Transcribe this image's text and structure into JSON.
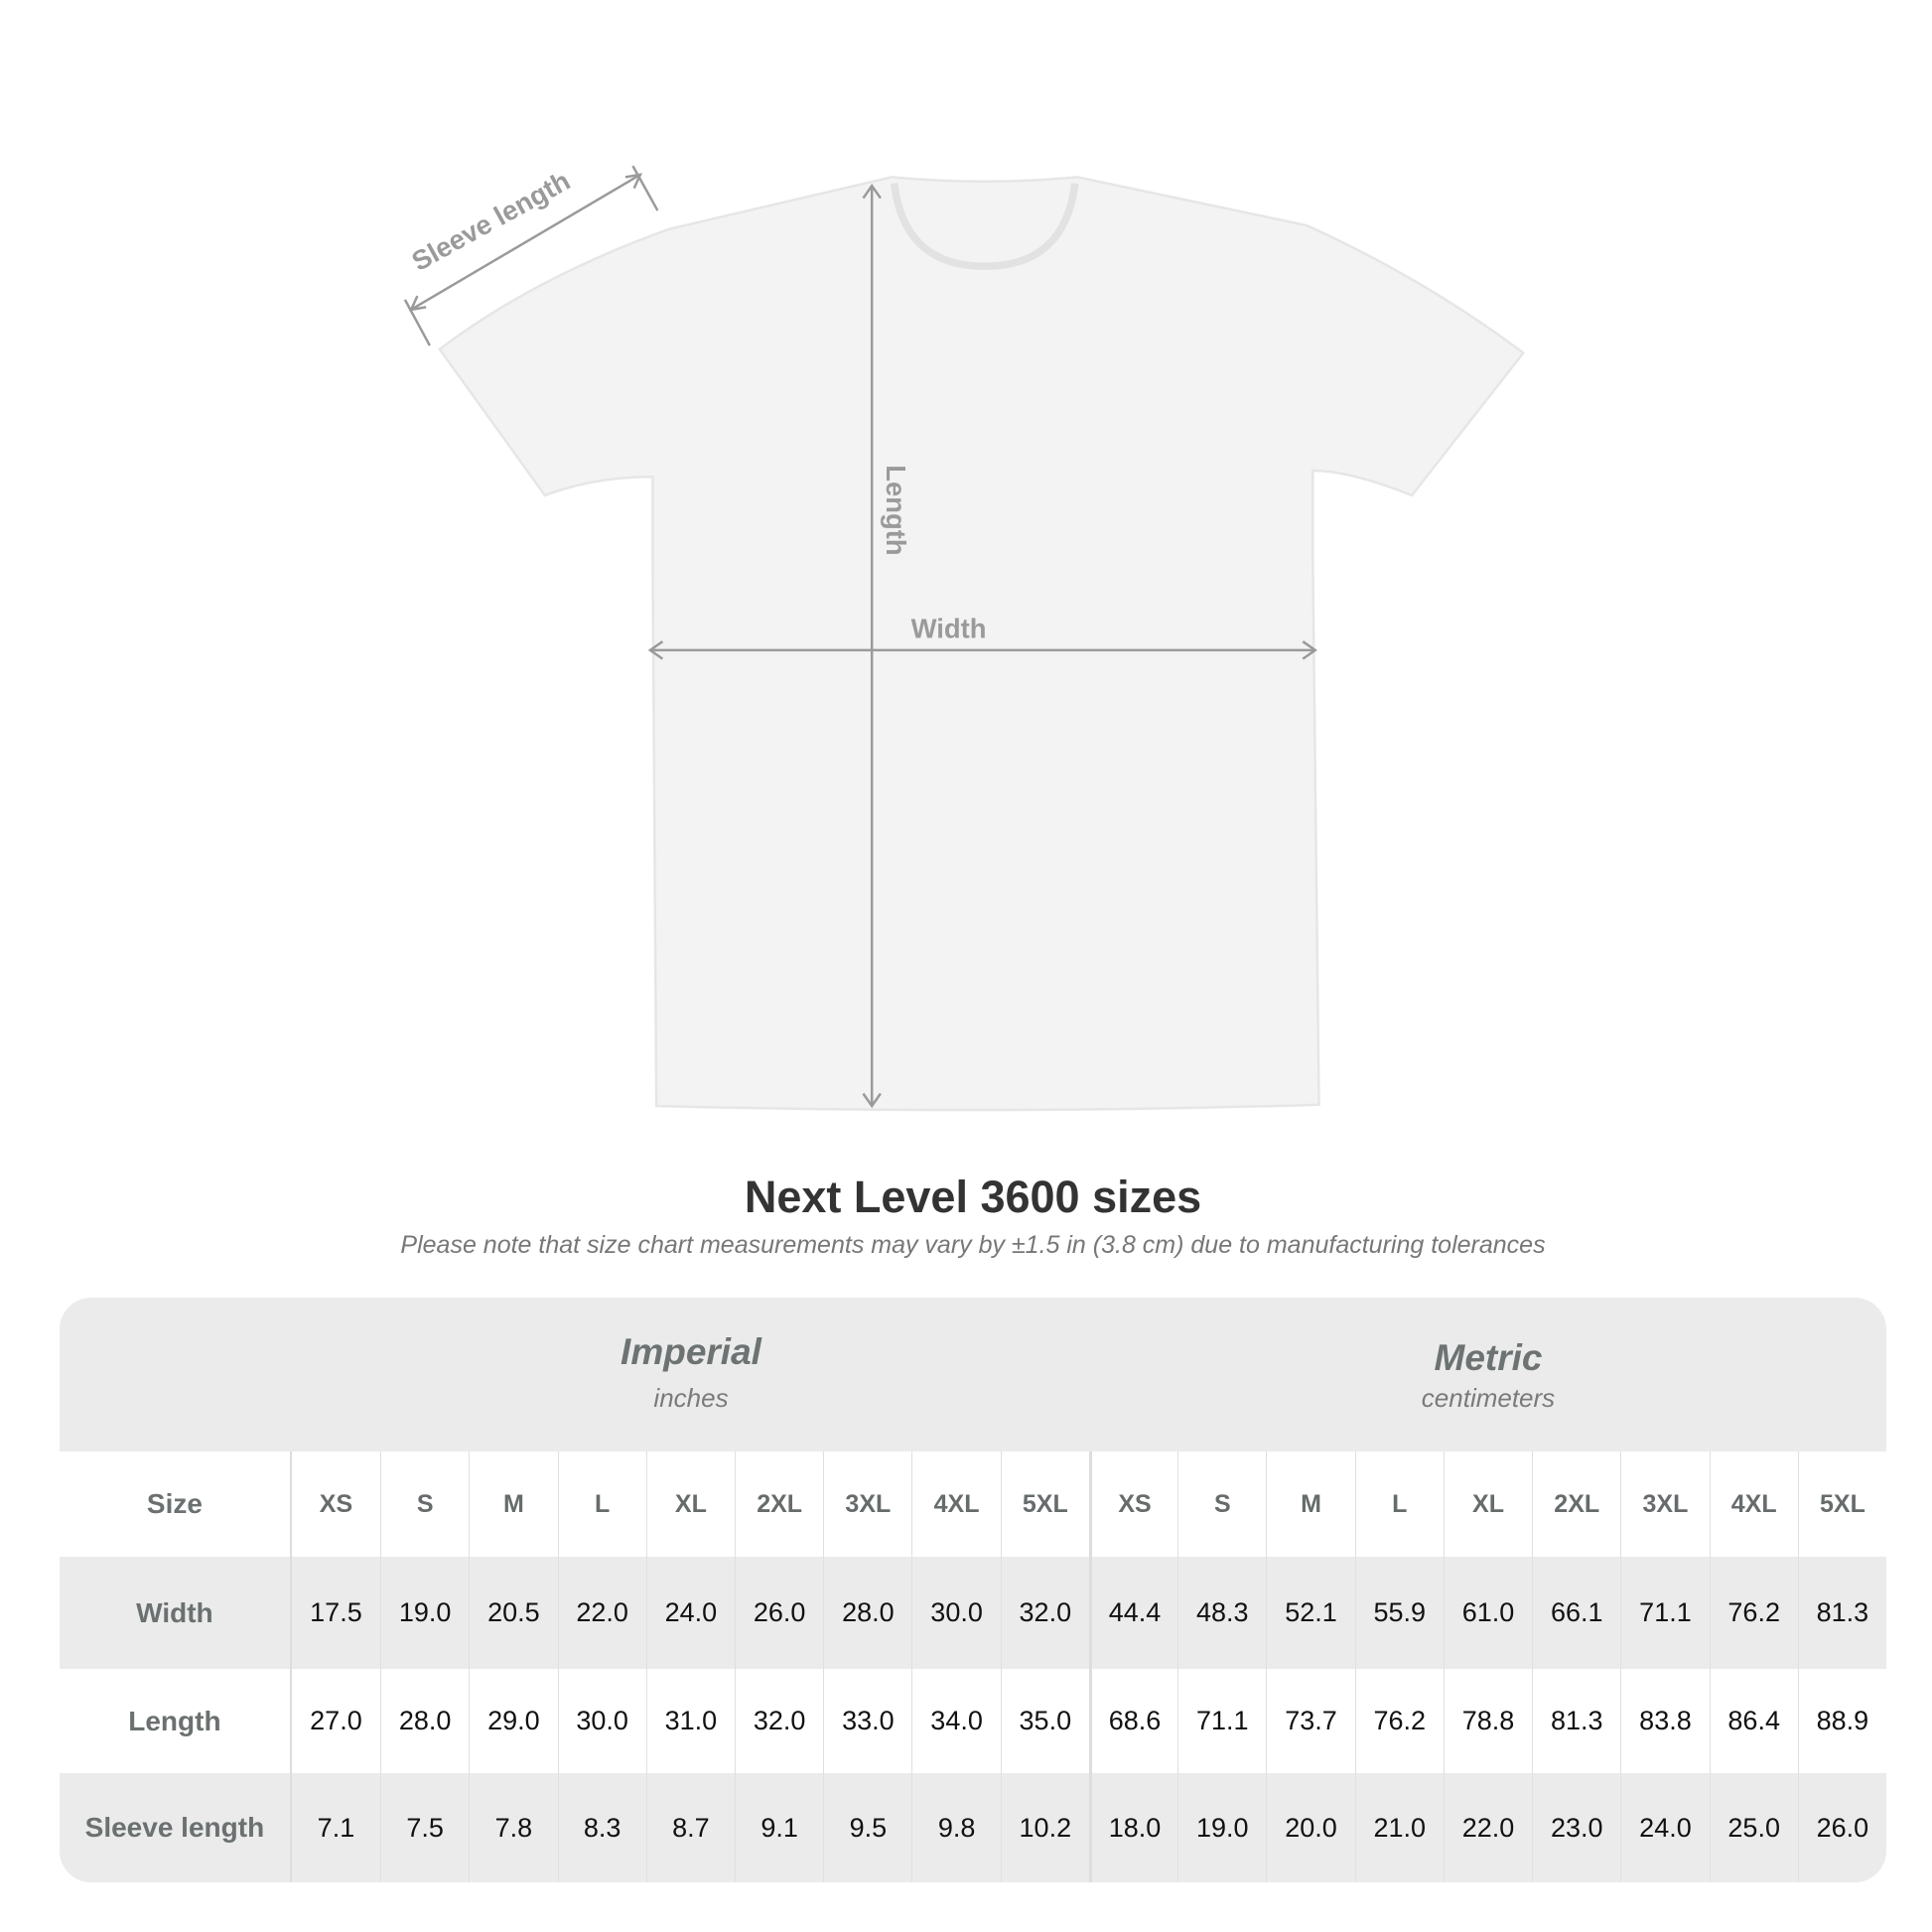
{
  "diagram": {
    "labels": {
      "sleeve": "Sleeve length",
      "length": "Length",
      "width": "Width"
    },
    "shirt_color": "#f3f3f3",
    "arrow_color": "#9a9a9a"
  },
  "title": "Next Level 3600 sizes",
  "note": "Please note that size chart measurements may vary by ±1.5 in (3.8 cm) due to manufacturing tolerances",
  "imperial": {
    "name": "Imperial",
    "unit": "inches"
  },
  "metric": {
    "name": "Metric",
    "unit": "centimeters"
  },
  "size_label": "Size",
  "sizes": [
    "XS",
    "S",
    "M",
    "L",
    "XL",
    "2XL",
    "3XL",
    "4XL",
    "5XL"
  ],
  "rows": [
    {
      "label": "Width",
      "imperial": [
        "17.5",
        "19.0",
        "20.5",
        "22.0",
        "24.0",
        "26.0",
        "28.0",
        "30.0",
        "32.0"
      ],
      "metric": [
        "44.4",
        "48.3",
        "52.1",
        "55.9",
        "61.0",
        "66.1",
        "71.1",
        "76.2",
        "81.3"
      ]
    },
    {
      "label": "Length",
      "imperial": [
        "27.0",
        "28.0",
        "29.0",
        "30.0",
        "31.0",
        "32.0",
        "33.0",
        "34.0",
        "35.0"
      ],
      "metric": [
        "68.6",
        "71.1",
        "73.7",
        "76.2",
        "78.8",
        "81.3",
        "83.8",
        "86.4",
        "88.9"
      ]
    },
    {
      "label": "Sleeve length",
      "imperial": [
        "7.1",
        "7.5",
        "7.8",
        "8.3",
        "8.7",
        "9.1",
        "9.5",
        "9.8",
        "10.2"
      ],
      "metric": [
        "18.0",
        "19.0",
        "20.0",
        "21.0",
        "22.0",
        "23.0",
        "24.0",
        "25.0",
        "26.0"
      ]
    }
  ]
}
